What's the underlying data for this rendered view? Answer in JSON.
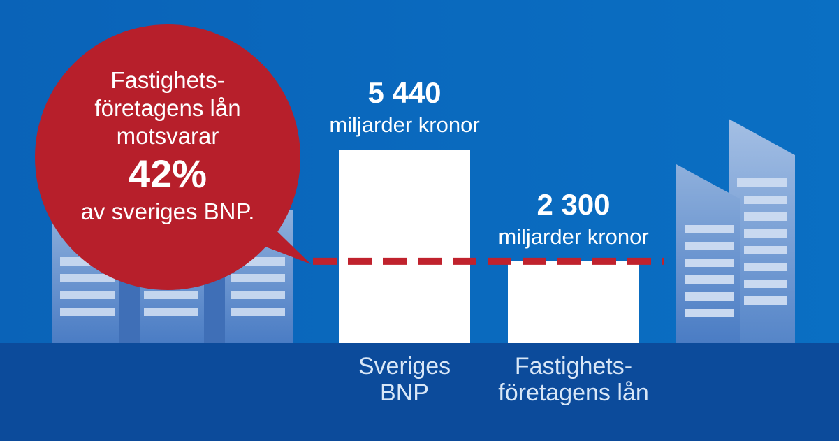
{
  "chart_data": {
    "type": "bar",
    "categories": [
      "Sveriges BNP",
      "Fastighetsföretagens lån"
    ],
    "category_lines": [
      [
        "Sveriges",
        "BNP"
      ],
      [
        "Fastighets-",
        "företagens lån"
      ]
    ],
    "values": [
      5440,
      2300
    ],
    "value_labels": [
      "5 440",
      "2 300"
    ],
    "unit_label": "miljarder kronor",
    "reference_line_value": 2300,
    "annotation": {
      "lines": [
        "Fastighets-",
        "företagens lån",
        "motsvarar",
        "av sveriges BNP."
      ],
      "highlight": "42%"
    },
    "colors": {
      "background": "#0a6ac0",
      "ground": "#0c4b9b",
      "bars": "#ffffff",
      "accent": "#b71f2b"
    },
    "grid": false,
    "legend": "none"
  }
}
